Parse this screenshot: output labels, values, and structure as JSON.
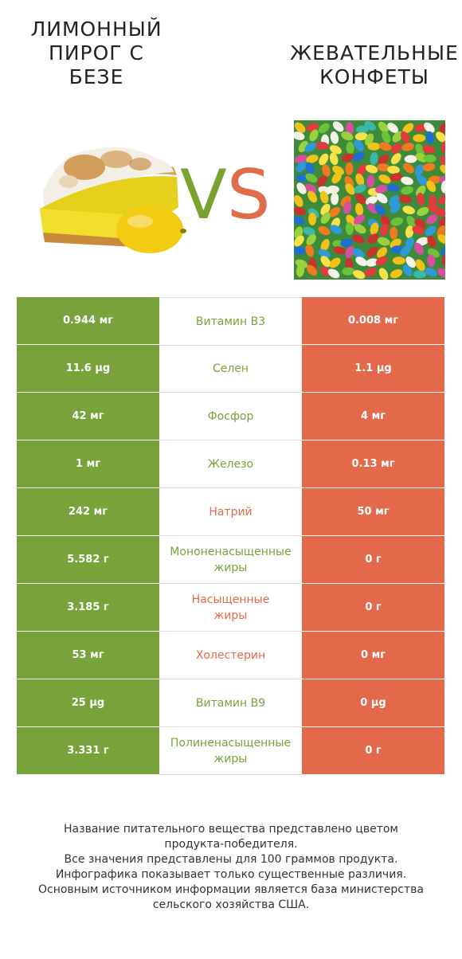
{
  "left_title": "ЛИМОННЫЙ\nПИРОГ С\nБЕЗЕ",
  "right_title": "ЖЕВАТЕЛЬНЫЕ\nКОНФЕТЫ",
  "vs": {
    "v": "V",
    "s": "S"
  },
  "colors": {
    "left": "#77a33a",
    "right": "#e4694a"
  },
  "rows": [
    {
      "left": "0.944 мг",
      "name": "Витамин B3",
      "right": "0.008 мг",
      "winner": "left"
    },
    {
      "left": "11.6 µg",
      "name": "Селен",
      "right": "1.1 µg",
      "winner": "left"
    },
    {
      "left": "42 мг",
      "name": "Фосфор",
      "right": "4 мг",
      "winner": "left"
    },
    {
      "left": "1 мг",
      "name": "Железо",
      "right": "0.13 мг",
      "winner": "left"
    },
    {
      "left": "242 мг",
      "name": "Натрий",
      "right": "50 мг",
      "winner": "right"
    },
    {
      "left": "5.582 г",
      "name": "Мононенасыщенные\nжиры",
      "right": "0 г",
      "winner": "left"
    },
    {
      "left": "3.185 г",
      "name": "Насыщенные\nжиры",
      "right": "0 г",
      "winner": "right"
    },
    {
      "left": "53 мг",
      "name": "Холестерин",
      "right": "0 мг",
      "winner": "right"
    },
    {
      "left": "25 µg",
      "name": "Витамин B9",
      "right": "0 µg",
      "winner": "left"
    },
    {
      "left": "3.331 г",
      "name": "Полиненасыщенные\nжиры",
      "right": "0 г",
      "winner": "left"
    }
  ],
  "footer": [
    "Название питательного вещества представлено цветом",
    "продукта-победителя.",
    "Все значения представлены для 100 граммов продукта.",
    "Инфографика показывает только существенные различия.",
    "Основным источником информации является база министерства",
    "сельского хозяйства США."
  ]
}
